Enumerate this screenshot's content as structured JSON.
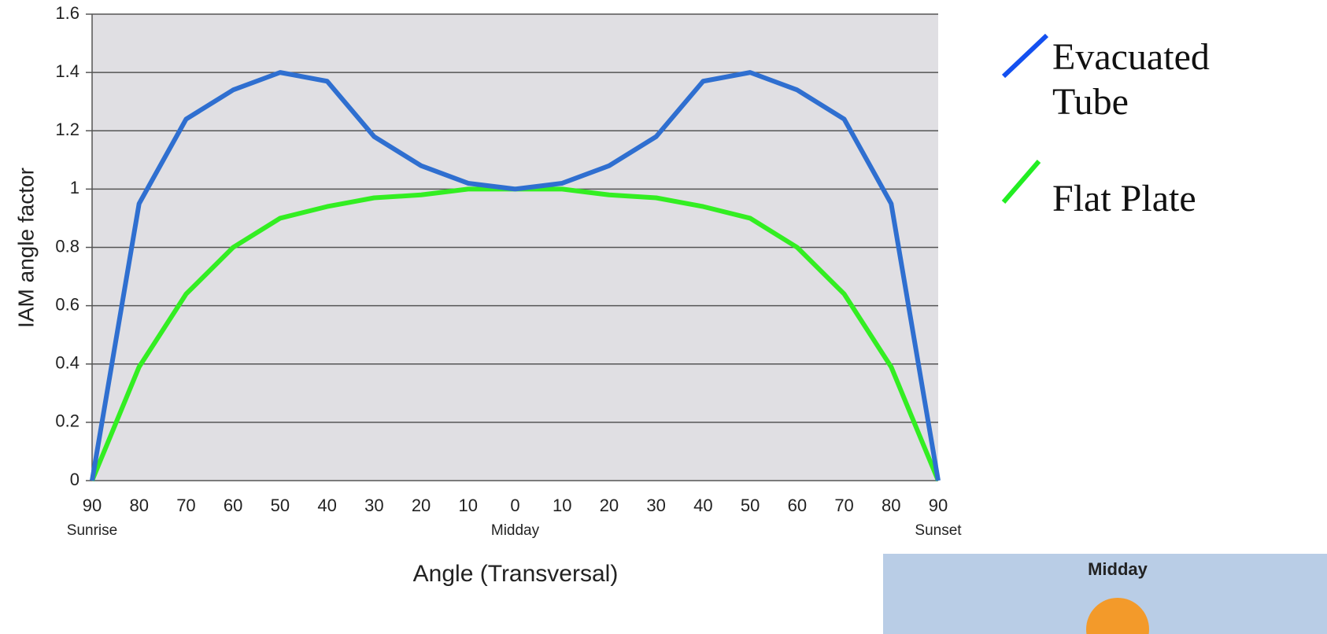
{
  "chart_data": {
    "type": "line",
    "x_label": "Angle (Transversal)",
    "y_label": "IAM angle factor",
    "categories": [
      "90",
      "80",
      "70",
      "60",
      "50",
      "40",
      "30",
      "20",
      "10",
      "0",
      "10",
      "20",
      "30",
      "40",
      "50",
      "60",
      "70",
      "80",
      "90"
    ],
    "category_notes": [
      "Sunrise",
      "Midday",
      "Sunset"
    ],
    "series": [
      {
        "name": "Evacuated Tube",
        "color": "#2f6fd0",
        "legend_color": "#1450f0",
        "values": [
          0,
          0.95,
          1.24,
          1.34,
          1.4,
          1.37,
          1.18,
          1.08,
          1.02,
          1.0,
          1.02,
          1.08,
          1.18,
          1.37,
          1.4,
          1.34,
          1.24,
          0.95,
          0
        ]
      },
      {
        "name": "Flat Plate",
        "color": "#33ee22",
        "legend_color": "#22ee22",
        "values": [
          0,
          0.39,
          0.64,
          0.8,
          0.9,
          0.94,
          0.97,
          0.98,
          1.0,
          1.0,
          1.0,
          0.98,
          0.97,
          0.94,
          0.9,
          0.8,
          0.64,
          0.39,
          0
        ]
      }
    ],
    "ylim": [
      0,
      1.6
    ],
    "yticks": [
      0,
      0.2,
      0.4,
      0.6,
      0.8,
      1,
      1.2,
      1.4,
      1.6
    ],
    "grid": true,
    "inset_label": "Midday"
  }
}
